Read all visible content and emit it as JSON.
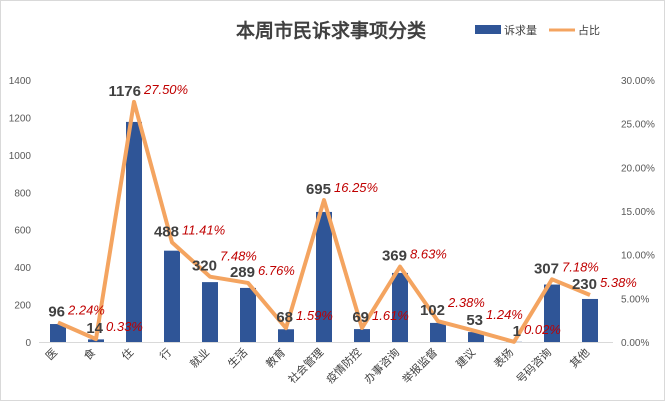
{
  "chart_data": {
    "type": "bar+line",
    "title": "本周市民诉求事项分类",
    "categories": [
      "医",
      "食",
      "住",
      "行",
      "就业",
      "生活",
      "教育",
      "社会管理",
      "疫情防控",
      "办事咨询",
      "举报监督",
      "建议",
      "表扬",
      "号码咨询",
      "其他"
    ],
    "series": [
      {
        "name": "诉求量",
        "type": "bar",
        "axis": "left",
        "color": "#2f5597",
        "values": [
          96,
          14,
          1176,
          488,
          320,
          289,
          68,
          695,
          69,
          369,
          102,
          53,
          1,
          307,
          230
        ]
      },
      {
        "name": "占比",
        "type": "line",
        "axis": "right",
        "color": "#f4a460",
        "values": [
          2.24,
          0.33,
          27.5,
          11.41,
          7.48,
          6.76,
          1.59,
          16.25,
          1.61,
          8.63,
          2.38,
          1.24,
          0.02,
          7.18,
          5.38
        ],
        "labels": [
          "2.24%",
          "0.33%",
          "27.50%",
          "11.41%",
          "7.48%",
          "6.76%",
          "1.59%",
          "16.25%",
          "1.61%",
          "8.63%",
          "2.38%",
          "1.24%",
          "0.02%",
          "7.18%",
          "5.38%"
        ]
      }
    ],
    "ylim": [
      0,
      1400
    ],
    "yticks": [
      "0",
      "200",
      "400",
      "600",
      "800",
      "1000",
      "1200",
      "1400"
    ],
    "y2lim": [
      0,
      30
    ],
    "y2ticks": [
      "0.00%",
      "5.00%",
      "10.00%",
      "15.00%",
      "20.00%",
      "25.00%",
      "30.00%"
    ],
    "legend": "top-right",
    "grid": false
  }
}
